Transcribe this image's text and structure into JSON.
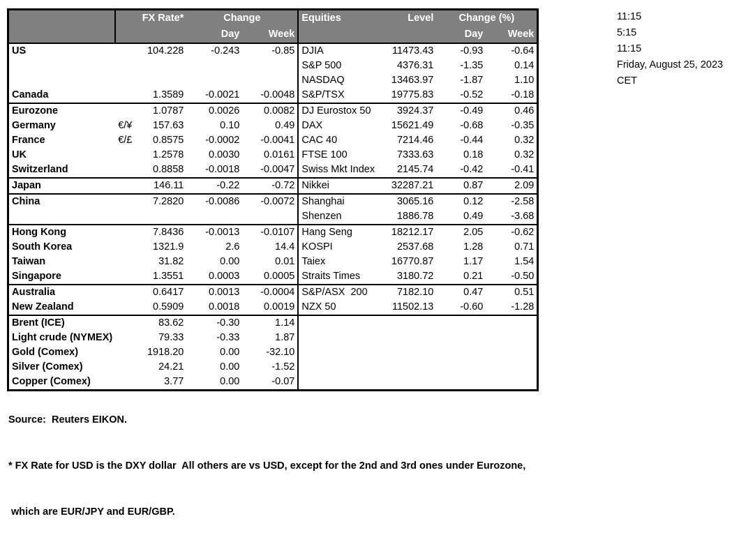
{
  "header": {
    "fx_rate": "FX Rate*",
    "change": "Change",
    "day": "Day",
    "week": "Week",
    "equities": "Equities",
    "level": "Level",
    "change_pct": "Change (%)"
  },
  "rows": [
    {
      "name": "US",
      "pair": "",
      "rate": "104.228",
      "day": "-0.243",
      "week": "-0.85",
      "eq": "DJIA",
      "level": "11473.43",
      "eqd": "-0.93",
      "eqw": "-0.64"
    },
    {
      "name": "",
      "pair": "",
      "rate": "",
      "day": "",
      "week": "",
      "eq": "S&P 500",
      "level": "4376.31",
      "eqd": "-1.35",
      "eqw": "0.14"
    },
    {
      "name": "",
      "pair": "",
      "rate": "",
      "day": "",
      "week": "",
      "eq": "NASDAQ",
      "level": "13463.97",
      "eqd": "-1.87",
      "eqw": "1.10"
    },
    {
      "name": "Canada",
      "pair": "",
      "rate": "1.3589",
      "day": "-0.0021",
      "week": "-0.0048",
      "eq": "S&P/TSX",
      "level": "19775.83",
      "eqd": "-0.52",
      "eqw": "-0.18",
      "end": true
    },
    {
      "name": "Eurozone",
      "pair": "",
      "rate": "1.0787",
      "day": "0.0026",
      "week": "0.0082",
      "eq": "DJ Eurostox 50",
      "level": "3924.37",
      "eqd": "-0.49",
      "eqw": "0.46"
    },
    {
      "name": "Germany",
      "indent": true,
      "pair": "€/¥",
      "rate": "157.63",
      "day": "0.10",
      "week": "0.49",
      "eq": "DAX",
      "level": "15621.49",
      "eqd": "-0.68",
      "eqw": "-0.35"
    },
    {
      "name": "France",
      "indent": true,
      "pair": "€/£",
      "rate": "0.8575",
      "day": "-0.0002",
      "week": "-0.0041",
      "eq": "CAC 40",
      "level": "7214.46",
      "eqd": "-0.44",
      "eqw": "0.32"
    },
    {
      "name": "UK",
      "pair": "",
      "rate": "1.2578",
      "day": "0.0030",
      "week": "0.0161",
      "eq": "FTSE 100",
      "level": "7333.63",
      "eqd": "0.18",
      "eqw": "0.32"
    },
    {
      "name": "Switzerland",
      "pair": "",
      "rate": "0.8858",
      "day": "-0.0018",
      "week": "-0.0047",
      "eq": "Swiss Mkt Index",
      "level": "2145.74",
      "eqd": "-0.42",
      "eqw": "-0.41",
      "end": true
    },
    {
      "name": "Japan",
      "pair": "",
      "rate": "146.11",
      "day": "-0.22",
      "week": "-0.72",
      "eq": "Nikkei",
      "level": "32287.21",
      "eqd": "0.87",
      "eqw": "2.09",
      "end": true
    },
    {
      "name": "China",
      "pair": "",
      "rate": "7.2820",
      "day": "-0.0086",
      "week": "-0.0072",
      "eq": "Shanghai",
      "level": "3065.16",
      "eqd": "0.12",
      "eqw": "-2.58"
    },
    {
      "name": "",
      "pair": "",
      "rate": "",
      "day": "",
      "week": "",
      "eq": "Shenzen",
      "level": "1886.78",
      "eqd": "0.49",
      "eqw": "-3.68",
      "end": true
    },
    {
      "name": "Hong Kong",
      "pair": "",
      "rate": "7.8436",
      "day": "-0.0013",
      "week": "-0.0107",
      "eq": "Hang Seng",
      "level": "18212.17",
      "eqd": "2.05",
      "eqw": "-0.62"
    },
    {
      "name": "South Korea",
      "pair": "",
      "rate": "1321.9",
      "day": "2.6",
      "week": "14.4",
      "eq": "KOSPI",
      "level": "2537.68",
      "eqd": "1.28",
      "eqw": "0.71"
    },
    {
      "name": "Taiwan",
      "pair": "",
      "rate": "31.82",
      "day": "0.00",
      "week": "0.01",
      "eq": "Taiex",
      "level": "16770.87",
      "eqd": "1.17",
      "eqw": "1.54"
    },
    {
      "name": "Singapore",
      "pair": "",
      "rate": "1.3551",
      "day": "0.0003",
      "week": "0.0005",
      "eq": "Straits Times",
      "level": "3180.72",
      "eqd": "0.21",
      "eqw": "-0.50",
      "end": true
    },
    {
      "name": "Australia",
      "pair": "",
      "rate": "0.6417",
      "day": "0.0013",
      "week": "-0.0004",
      "eq": "S&P/ASX  200",
      "level": "7182.10",
      "eqd": "0.47",
      "eqw": "0.51"
    },
    {
      "name": "New Zealand",
      "pair": "",
      "rate": "0.5909",
      "day": "0.0018",
      "week": "0.0019",
      "eq": "NZX 50",
      "level": "11502.13",
      "eqd": "-0.60",
      "eqw": "-1.28",
      "end": true
    },
    {
      "name": "Brent (ICE)",
      "pair": "",
      "rate": "83.62",
      "day": "-0.30",
      "week": "1.14",
      "eq": "",
      "level": "",
      "eqd": "",
      "eqw": ""
    },
    {
      "name": "Light crude (NYMEX)",
      "pair": "",
      "rate": "79.33",
      "day": "-0.33",
      "week": "1.87",
      "eq": "",
      "level": "",
      "eqd": "",
      "eqw": ""
    },
    {
      "name": "Gold (Comex)",
      "pair": "",
      "rate": "1918.20",
      "day": "0.00",
      "week": "-32.10",
      "eq": "",
      "level": "",
      "eqd": "",
      "eqw": ""
    },
    {
      "name": "Silver (Comex)",
      "pair": "",
      "rate": "24.21",
      "day": "0.00",
      "week": "-1.52",
      "eq": "",
      "level": "",
      "eqd": "",
      "eqw": ""
    },
    {
      "name": "Copper (Comex)",
      "pair": "",
      "rate": "3.77",
      "day": "0.00",
      "week": "-0.07",
      "eq": "",
      "level": "",
      "eqd": "",
      "eqw": ""
    }
  ],
  "timestamps": [
    "11:15",
    "5:15",
    "11:15",
    "Friday, August 25, 2023",
    "CET"
  ],
  "footer": {
    "source": "Source:  Reuters EIKON.",
    "note1": "* FX Rate for USD is the DXY dollar  All others are vs USD, except for the 2nd and 3rd ones under Eurozone,",
    "note2": " which are EUR/JPY and EUR/GBP."
  },
  "colors": {
    "header_bg": "#808080",
    "header_text": "#ffffff",
    "border": "#000000",
    "background": "#ffffff"
  }
}
